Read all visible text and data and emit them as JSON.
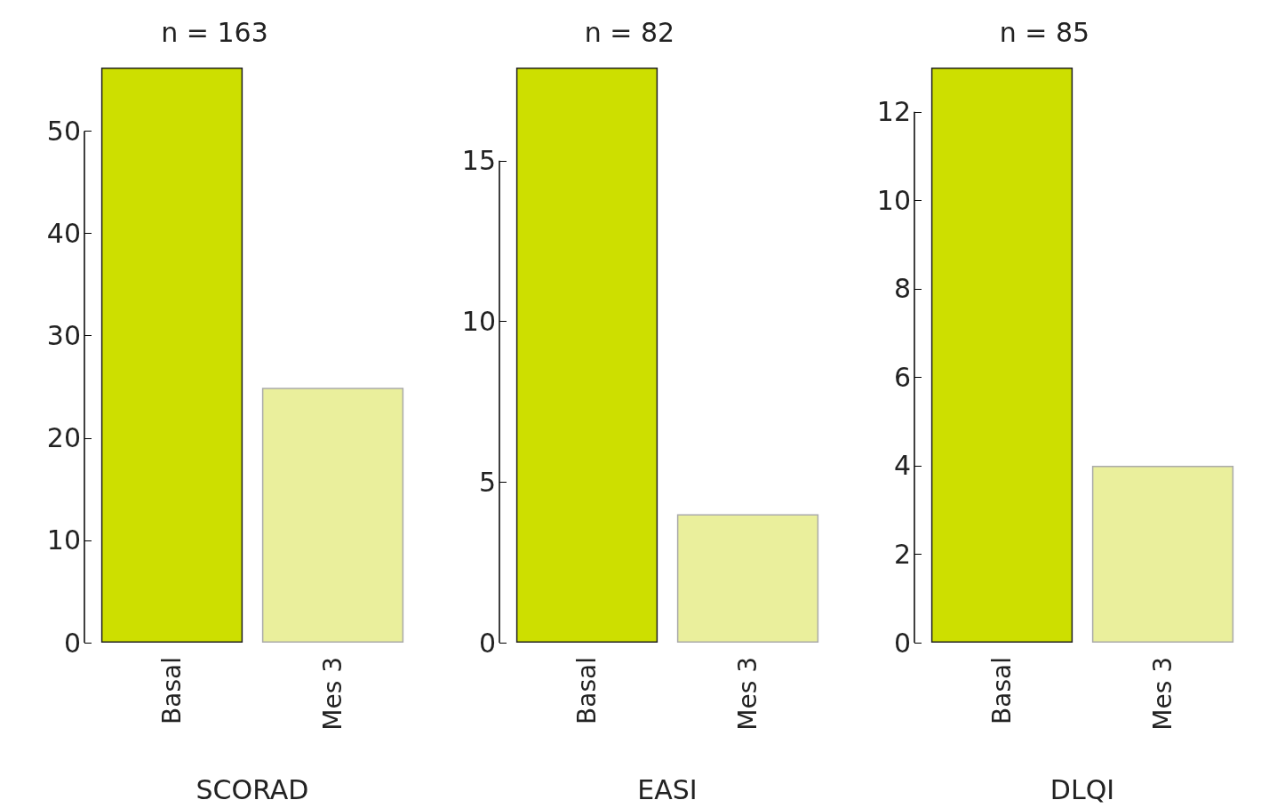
{
  "chart_data": [
    {
      "type": "bar",
      "title": "n = 163",
      "xlabel": "SCORAD",
      "categories": [
        "Basal",
        "Mes 3"
      ],
      "values": [
        56.2,
        24.9
      ],
      "colors": [
        "#cddf00",
        "#eaef9c"
      ],
      "ylim": [
        0,
        56.2
      ],
      "yticks": [
        0,
        10,
        20,
        30,
        40,
        50
      ]
    },
    {
      "type": "bar",
      "title": "n = 82",
      "xlabel": "EASI",
      "categories": [
        "Basal",
        "Mes 3"
      ],
      "values": [
        17.9,
        4.0
      ],
      "colors": [
        "#cddf00",
        "#eaef9c"
      ],
      "ylim": [
        0,
        17.9
      ],
      "yticks": [
        0,
        5,
        10,
        15
      ]
    },
    {
      "type": "bar",
      "title": "n = 85",
      "xlabel": "DLQI",
      "categories": [
        "Basal",
        "Mes 3"
      ],
      "values": [
        13.0,
        4.0
      ],
      "colors": [
        "#cddf00",
        "#eaef9c"
      ],
      "ylim": [
        0,
        13.0
      ],
      "yticks": [
        0,
        2,
        4,
        6,
        8,
        10,
        12
      ]
    }
  ]
}
